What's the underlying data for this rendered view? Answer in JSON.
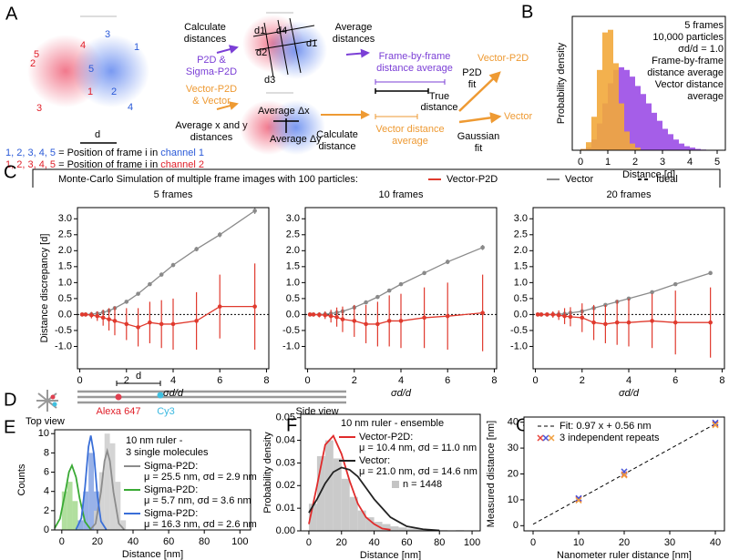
{
  "panels": {
    "A": {
      "label": "A",
      "channel2_numbers": [
        "5",
        "2",
        "4",
        "1",
        "3"
      ],
      "channel1_numbers": [
        "3",
        "1",
        "5",
        "2",
        "4"
      ],
      "scale": "d",
      "calculate_distances": [
        "Calculate",
        "distances"
      ],
      "p2d": [
        "P2D &",
        "Sigma-P2D"
      ],
      "vector": [
        "Vector-P2D",
        "& Vector"
      ],
      "average_xy": [
        "Average x and y",
        "distances"
      ],
      "distance_labels": [
        "d1",
        "d2",
        "d3",
        "d4"
      ],
      "average_dx": "Average Δx",
      "average_dy": "Average Δy",
      "average_distances": [
        "Average",
        "distances"
      ],
      "frame_by_frame": [
        "Frame-by-frame",
        "distance average"
      ],
      "true_distance": [
        "True",
        "distance"
      ],
      "vector_distance": [
        "Vector distance",
        "average"
      ],
      "calculate_distance": [
        "Calculate",
        "distance"
      ],
      "p2d_fit": [
        "P2D",
        "fit"
      ],
      "vector_p2d": "Vector-P2D",
      "gaussian_fit": [
        "Gaussian",
        "fit"
      ],
      "vector_result": "Vector",
      "legend": [
        {
          "numbers": "1, 2, 3, 4, 5",
          "text": " = Position of frame i in ",
          "channel": "channel 1"
        },
        {
          "numbers": "1, 2, 3, 4, 5",
          "text": " = Position of frame i in ",
          "channel": "channel 2"
        }
      ]
    },
    "B": {
      "label": "B"
    },
    "C": {
      "label": "C",
      "title": "Monte-Carlo Simulation of multiple frame images with 100 particles:",
      "legend": [
        {
          "name": "Vector-P2D",
          "color": "#e03a2e"
        },
        {
          "name": "Vector",
          "color": "#8a8a8a"
        },
        {
          "name": "Ideal",
          "color": "#000000",
          "dash": true
        }
      ]
    },
    "D": {
      "label": "D",
      "top_view": "Top view",
      "d": "d",
      "dye1": "Alexa 647",
      "dye2": "Cy3",
      "side_view": "Side view"
    },
    "E": {
      "label": "E"
    },
    "F": {
      "label": "F"
    },
    "G": {
      "label": "G"
    }
  },
  "chart_data": [
    {
      "type": "histogram",
      "xlabel": "Distance [d]",
      "ylabel": "Probability density",
      "annotations": [
        "5 frames",
        "10,000 particles",
        "σd/d = 1.0"
      ],
      "series": [
        {
          "name": [
            "Frame-by-frame",
            "distance average"
          ],
          "color": "#9b4de6",
          "bins": [
            0,
            0.2,
            0.4,
            0.6,
            0.8,
            1.0,
            1.2,
            1.4,
            1.6,
            1.8,
            2.0,
            2.2,
            2.4,
            2.6,
            2.8,
            3.0,
            3.2,
            3.4,
            3.6,
            3.8,
            4.0,
            4.2,
            4.4,
            4.6,
            4.8,
            5.0
          ],
          "values": [
            0.01,
            0.02,
            0.08,
            0.2,
            0.35,
            0.5,
            0.6,
            0.62,
            0.6,
            0.55,
            0.48,
            0.42,
            0.35,
            0.28,
            0.22,
            0.16,
            0.12,
            0.08,
            0.05,
            0.03,
            0.02,
            0.01,
            0.005,
            0,
            0
          ]
        },
        {
          "name": [
            "Vector distance",
            "average"
          ],
          "color": "#f2a93b",
          "bins": [
            0,
            0.2,
            0.4,
            0.6,
            0.8,
            1.0,
            1.2,
            1.4,
            1.6,
            1.8,
            2.0,
            2.2
          ],
          "values": [
            0.01,
            0.06,
            0.25,
            0.6,
            0.88,
            0.9,
            0.65,
            0.35,
            0.14,
            0.05,
            0.02
          ]
        }
      ],
      "xlim": [
        -0.3,
        5.3
      ],
      "ylim": [
        0,
        1
      ],
      "xticks": [
        0,
        1,
        2,
        3,
        4,
        5
      ]
    },
    {
      "type": "line",
      "title": "5 frames",
      "xlabel": "σd/d",
      "ylabel": "Distance discrepancy [d]",
      "ideal": 0,
      "x": [
        0.1,
        0.25,
        0.5,
        0.75,
        1,
        1.25,
        1.5,
        2,
        2.5,
        3,
        3.5,
        4,
        5,
        6,
        7.5
      ],
      "series": [
        {
          "color": "#8a8a8a",
          "values": [
            0,
            0,
            0.01,
            0.03,
            0.07,
            0.12,
            0.2,
            0.4,
            0.65,
            0.95,
            1.25,
            1.55,
            2.05,
            2.5,
            3.25
          ],
          "errors": [
            0.01,
            0.01,
            0.01,
            0.01,
            0.02,
            0.02,
            0.03,
            0.03,
            0.04,
            0.05,
            0.05,
            0.06,
            0.07,
            0.08,
            0.1
          ]
        },
        {
          "color": "#e03a2e",
          "values": [
            0,
            0,
            -0.02,
            -0.05,
            -0.1,
            -0.15,
            -0.2,
            -0.3,
            -0.4,
            -0.25,
            -0.3,
            -0.3,
            -0.2,
            0.25,
            0.25
          ],
          "errors": [
            0.02,
            0.05,
            0.1,
            0.15,
            0.25,
            0.35,
            0.45,
            0.5,
            0.6,
            0.65,
            0.75,
            0.8,
            0.9,
            1.0,
            1.35
          ]
        }
      ],
      "xlim": [
        -0.1,
        8.1
      ],
      "ylim": [
        -1.7,
        3.35
      ],
      "xticks": [
        0,
        2,
        4,
        6,
        8
      ],
      "yticks": [
        {
          "value": -1,
          "label": "-1.0"
        },
        {
          "value": -0.5,
          "label": "-0.5"
        },
        {
          "value": 0,
          "label": "0.0"
        },
        {
          "value": 0.5,
          "label": "0.5"
        },
        {
          "value": 1,
          "label": "1.0"
        },
        {
          "value": 1.5,
          "label": "1.5"
        },
        {
          "value": 2,
          "label": "2.0"
        },
        {
          "value": 2.5,
          "label": "2.5"
        },
        {
          "value": 3,
          "label": "3.0"
        }
      ]
    },
    {
      "type": "line",
      "title": "10 frames",
      "xlabel": "σd/d",
      "ideal": 0,
      "x": [
        0.1,
        0.25,
        0.5,
        0.75,
        1,
        1.25,
        1.5,
        2,
        2.5,
        3,
        3.5,
        4,
        5,
        6,
        7.5
      ],
      "series": [
        {
          "color": "#8a8a8a",
          "values": [
            0,
            0,
            0,
            0.01,
            0.03,
            0.06,
            0.1,
            0.22,
            0.38,
            0.55,
            0.75,
            0.95,
            1.3,
            1.65,
            2.1
          ],
          "errors": [
            0.01,
            0.01,
            0.01,
            0.01,
            0.01,
            0.02,
            0.02,
            0.03,
            0.03,
            0.04,
            0.04,
            0.05,
            0.06,
            0.07,
            0.08
          ]
        },
        {
          "color": "#e03a2e",
          "values": [
            0,
            0,
            -0.01,
            -0.02,
            -0.05,
            -0.08,
            -0.15,
            -0.2,
            -0.3,
            -0.3,
            -0.2,
            -0.2,
            -0.1,
            -0.05,
            0.05
          ],
          "errors": [
            0.02,
            0.04,
            0.08,
            0.12,
            0.2,
            0.3,
            0.4,
            0.5,
            0.6,
            0.7,
            0.8,
            0.85,
            0.95,
            1.05,
            1.2
          ]
        }
      ],
      "xlim": [
        -0.1,
        8.1
      ],
      "ylim": [
        -1.7,
        3.35
      ],
      "xticks": [
        0,
        2,
        4,
        6,
        8
      ],
      "yticks": [
        {
          "value": -1,
          "label": "-1.0"
        },
        {
          "value": -0.5,
          "label": "-0.5"
        },
        {
          "value": 0,
          "label": "0.0"
        },
        {
          "value": 0.5,
          "label": "0.5"
        },
        {
          "value": 1,
          "label": "1.0"
        },
        {
          "value": 1.5,
          "label": "1.5"
        },
        {
          "value": 2,
          "label": "2.0"
        },
        {
          "value": 2.5,
          "label": "2.5"
        },
        {
          "value": 3,
          "label": "3.0"
        }
      ]
    },
    {
      "type": "line",
      "title": "20 frames",
      "xlabel": "σd/d",
      "ideal": 0,
      "x": [
        0.1,
        0.25,
        0.5,
        0.75,
        1,
        1.25,
        1.5,
        2,
        2.5,
        3,
        3.5,
        4,
        5,
        6,
        7.5
      ],
      "series": [
        {
          "color": "#8a8a8a",
          "values": [
            0,
            0,
            0,
            0,
            0.01,
            0.02,
            0.05,
            0.1,
            0.2,
            0.3,
            0.4,
            0.5,
            0.7,
            0.95,
            1.3
          ],
          "errors": [
            0.01,
            0.01,
            0.01,
            0.01,
            0.01,
            0.01,
            0.02,
            0.02,
            0.02,
            0.03,
            0.03,
            0.03,
            0.04,
            0.05,
            0.06
          ]
        },
        {
          "color": "#e03a2e",
          "values": [
            0,
            0,
            0,
            0,
            -0.02,
            -0.05,
            -0.07,
            -0.1,
            -0.25,
            -0.3,
            -0.25,
            -0.25,
            -0.2,
            -0.25,
            -0.25
          ],
          "errors": [
            0.01,
            0.03,
            0.05,
            0.1,
            0.15,
            0.25,
            0.3,
            0.45,
            0.55,
            0.6,
            0.7,
            0.75,
            0.85,
            1.0,
            1.1
          ]
        }
      ],
      "xlim": [
        -0.1,
        8.1
      ],
      "ylim": [
        -1.7,
        3.35
      ],
      "xticks": [
        0,
        2,
        4,
        6,
        8
      ],
      "yticks": [
        {
          "value": -1,
          "label": "-1.0"
        },
        {
          "value": -0.5,
          "label": "-0.5"
        },
        {
          "value": 0,
          "label": "0.0"
        },
        {
          "value": 0.5,
          "label": "0.5"
        },
        {
          "value": 1,
          "label": "1.0"
        },
        {
          "value": 1.5,
          "label": "1.5"
        },
        {
          "value": 2,
          "label": "2.0"
        },
        {
          "value": 2.5,
          "label": "2.5"
        },
        {
          "value": 3,
          "label": "3.0"
        }
      ]
    },
    {
      "type": "histogram",
      "xlabel": "Distance [nm]",
      "ylabel": "Counts",
      "annotations": [
        "10 nm ruler -",
        "3 single molecules"
      ],
      "series": [
        {
          "color": "#a9dc95",
          "bins": [
            0,
            3,
            6,
            9,
            12
          ],
          "values": [
            4,
            5,
            3,
            1
          ]
        },
        {
          "color": "#8eaae6",
          "bins": [
            9,
            12,
            15,
            18,
            21,
            24
          ],
          "values": [
            1,
            4,
            8,
            4,
            1
          ]
        },
        {
          "color": "#cfcfcf",
          "bins": [
            18,
            21,
            24,
            27,
            30,
            33,
            36
          ],
          "values": [
            2,
            6,
            10,
            9,
            5,
            1
          ]
        }
      ],
      "curves": [
        {
          "name": "Sigma-P2D:",
          "stats": "μ = 25.5 nm, σd = 2.9 nm",
          "color": "#8c8c8c",
          "x": [
            16,
            19,
            22,
            24,
            25.5,
            27,
            29,
            32,
            35
          ],
          "y": [
            0.04,
            0.67,
            3.96,
            7.17,
            8.2,
            7.17,
            3.96,
            0.67,
            0.04
          ]
        },
        {
          "name": "Sigma-P2D:",
          "stats": "μ = 5.7 nm, σd = 3.6 nm",
          "color": "#3aaa35",
          "x": [
            -4,
            -1,
            2,
            4,
            5.7,
            8,
            10,
            13,
            16
          ],
          "y": [
            0.18,
            1.18,
            3.95,
            6.0,
            6.7,
            5.48,
            3.29,
            0.86,
            0.11
          ]
        },
        {
          "name": "Sigma-P2D:",
          "stats": "μ = 16.3 nm, σd = 2.6 nm",
          "color": "#3a6fd8",
          "x": [
            8,
            11,
            13,
            15,
            16.3,
            18,
            20,
            22,
            25
          ],
          "y": [
            0.06,
            1.22,
            4.37,
            8.65,
            9.8,
            7.93,
            3.56,
            0.89,
            0.04
          ]
        }
      ],
      "xlim": [
        -4,
        106
      ],
      "ylim": [
        0,
        10.4
      ],
      "xticks": [
        0,
        20,
        40,
        60,
        80,
        100
      ],
      "yticks": [
        0,
        2,
        4,
        6,
        8,
        10
      ]
    },
    {
      "type": "histogram",
      "xlabel": "Distance [nm]",
      "ylabel": "Probability density",
      "annotations": [
        "10 nm ruler - ensemble"
      ],
      "series": [
        {
          "name": "n = 1448",
          "color": "#c4c4c4",
          "bins": [
            0,
            5,
            10,
            15,
            20,
            25,
            30,
            35,
            40,
            45,
            50,
            55,
            60,
            65,
            70,
            75,
            80,
            85,
            90,
            95,
            100
          ],
          "values": [
            0.012,
            0.033,
            0.04,
            0.032,
            0.023,
            0.015,
            0.009,
            0.006,
            0.004,
            0.003,
            0.002,
            0.0015,
            0.001,
            0.001,
            0.0005,
            0.0005,
            0.0003,
            0,
            0.0003,
            0.0002
          ]
        }
      ],
      "curves": [
        {
          "name": "Vector-P2D:",
          "stats": "μ = 10.4 nm, σd = 11.0 nm",
          "color": "#e02b2b",
          "x": [
            0,
            5,
            10,
            15,
            20,
            25,
            30,
            35,
            40,
            45,
            50
          ],
          "y": [
            0.003,
            0.02,
            0.038,
            0.042,
            0.034,
            0.022,
            0.012,
            0.006,
            0.003,
            0.001,
            0.0005
          ]
        },
        {
          "name": "Vector:",
          "stats": "μ = 21.0 nm, σd = 14.6 nm",
          "color": "#222222",
          "x": [
            0,
            5,
            10,
            15,
            20,
            25,
            30,
            35,
            40,
            45,
            50,
            55,
            60,
            70,
            80
          ],
          "y": [
            0.008,
            0.014,
            0.021,
            0.026,
            0.028,
            0.027,
            0.024,
            0.019,
            0.014,
            0.01,
            0.006,
            0.004,
            0.002,
            0.0007,
            0.0002
          ]
        }
      ],
      "xlim": [
        -5,
        105
      ],
      "ylim": [
        0,
        0.0515
      ],
      "xticks": [
        0,
        20,
        40,
        60,
        80,
        100
      ],
      "yticks": [
        {
          "value": 0,
          "label": "0.00"
        },
        {
          "value": 0.01,
          "label": "0.01"
        },
        {
          "value": 0.02,
          "label": "0.02"
        },
        {
          "value": 0.03,
          "label": "0.03"
        },
        {
          "value": 0.04,
          "label": "0.04"
        },
        {
          "value": 0.05,
          "label": "0.05"
        }
      ]
    },
    {
      "type": "scatter",
      "xlabel": "Nanometer ruler distance [nm]",
      "ylabel": "Measured distance [nm]",
      "x": [
        10,
        20,
        40
      ],
      "series": [
        {
          "color": "#e8433a",
          "values": [
            10.2,
            19.8,
            39.3
          ]
        },
        {
          "color": "#4a55d8",
          "values": [
            10.6,
            20.9,
            39.8
          ]
        },
        {
          "color": "#f0a040",
          "values": [
            9.8,
            19.5,
            38.9
          ]
        }
      ],
      "legend_label": "3 independent repeats",
      "fit": {
        "name": "Fit: 0.97 x + 0.56 nm",
        "x": [
          0,
          40
        ],
        "y": [
          0.56,
          39.36
        ]
      },
      "xlim": [
        -2,
        42
      ],
      "ylim": [
        -2,
        42
      ],
      "xticks": [
        0,
        10,
        20,
        30,
        40
      ],
      "yticks": [
        0,
        10,
        20,
        30,
        40
      ]
    }
  ]
}
